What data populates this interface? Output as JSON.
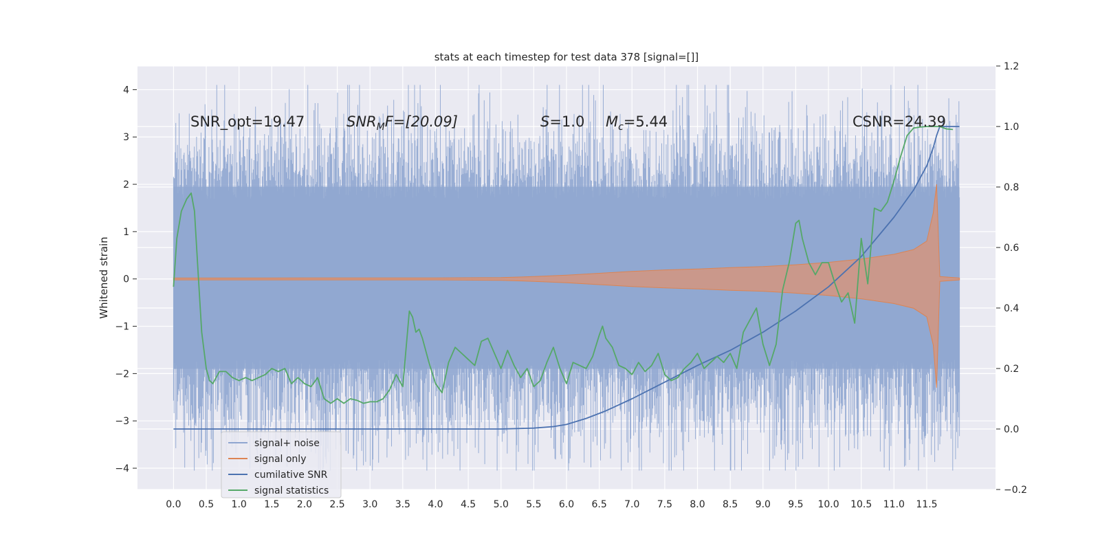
{
  "chart_data": {
    "type": "line",
    "title": "stats at each timestep for test data 378 [signal=[]]",
    "ylabel": "Whitened strain",
    "xlim": [
      -0.55,
      12.55
    ],
    "ylim": [
      -4.45,
      4.5
    ],
    "y2lim": [
      -0.2,
      1.2
    ],
    "x_ticks": [
      "0.0",
      "0.5",
      "1.0",
      "1.5",
      "2.0",
      "2.5",
      "3.0",
      "3.5",
      "4.0",
      "4.5",
      "5.0",
      "5.5",
      "6.0",
      "6.5",
      "7.0",
      "7.5",
      "8.0",
      "8.5",
      "9.0",
      "9.5",
      "10.0",
      "10.5",
      "11.0",
      "11.5"
    ],
    "y_ticks": [
      4,
      3,
      2,
      1,
      0,
      -1,
      -2,
      -3,
      -4
    ],
    "y2_ticks": [
      "1.2",
      "1.0",
      "0.8",
      "0.6",
      "0.4",
      "0.2",
      "0.0",
      "−0.2"
    ],
    "annotations": {
      "snr_opt": "SNR_opt=19.47",
      "snr_mf_main": "SNR",
      "snr_mf_sub": "M",
      "snr_mf_tail": "F=[20.09]",
      "s_var": "S",
      "s_tail": "=1.0",
      "mc_var": "M",
      "mc_sub": "c",
      "mc_tail": "=5.44",
      "csnr": "CSNR=24.39"
    },
    "legend": [
      {
        "label": "signal+ noise",
        "color": "#8fa6d0"
      },
      {
        "label": "signal only",
        "color": "#dd8452"
      },
      {
        "label": "cumilative SNR",
        "color": "#4c72b0"
      },
      {
        "label": "signal statistics",
        "color": "#55a868"
      }
    ],
    "legend_placement": "lower-left",
    "grid": true,
    "noise_envelope": {
      "x_start": 0.0,
      "x_end": 12.0,
      "dense_band": [
        -1.9,
        1.95
      ],
      "spike_max": 4.1,
      "spike_min": -4.05
    },
    "signal_only_envelope": {
      "x": [
        0.0,
        2.0,
        4.0,
        5.0,
        5.5,
        6.0,
        6.5,
        7.0,
        7.5,
        8.0,
        8.5,
        9.0,
        9.5,
        10.0,
        10.5,
        11.0,
        11.3,
        11.5,
        11.6,
        11.65,
        11.7,
        12.0
      ],
      "upper": [
        0.02,
        0.02,
        0.02,
        0.03,
        0.05,
        0.08,
        0.12,
        0.16,
        0.19,
        0.21,
        0.24,
        0.26,
        0.3,
        0.35,
        0.42,
        0.52,
        0.62,
        0.8,
        1.4,
        2.0,
        0.05,
        0.02
      ],
      "lower": [
        -0.02,
        -0.02,
        -0.02,
        -0.03,
        -0.05,
        -0.08,
        -0.12,
        -0.16,
        -0.19,
        -0.21,
        -0.24,
        -0.26,
        -0.3,
        -0.35,
        -0.42,
        -0.52,
        -0.62,
        -0.8,
        -1.4,
        -2.3,
        -0.05,
        -0.02
      ]
    },
    "series": [
      {
        "name": "cumilative SNR",
        "axis": "right",
        "x": [
          0.0,
          4.0,
          5.0,
          5.5,
          5.8,
          6.0,
          6.3,
          6.6,
          7.0,
          7.5,
          8.0,
          8.5,
          9.0,
          9.5,
          10.0,
          10.5,
          11.0,
          11.3,
          11.5,
          11.6,
          11.65,
          11.7,
          12.0
        ],
        "values": [
          0.0,
          0.0,
          0.0,
          0.003,
          0.008,
          0.015,
          0.035,
          0.06,
          0.1,
          0.155,
          0.21,
          0.26,
          0.32,
          0.39,
          0.47,
          0.57,
          0.7,
          0.79,
          0.87,
          0.93,
          0.97,
          1.0,
          1.0
        ]
      },
      {
        "name": "signal statistics",
        "axis": "right",
        "x": [
          0.0,
          0.05,
          0.12,
          0.2,
          0.27,
          0.32,
          0.38,
          0.43,
          0.5,
          0.55,
          0.6,
          0.65,
          0.7,
          0.8,
          0.9,
          1.0,
          1.1,
          1.2,
          1.3,
          1.4,
          1.5,
          1.6,
          1.7,
          1.8,
          1.9,
          2.0,
          2.1,
          2.2,
          2.3,
          2.4,
          2.5,
          2.6,
          2.7,
          2.8,
          2.9,
          3.0,
          3.1,
          3.2,
          3.3,
          3.4,
          3.5,
          3.6,
          3.65,
          3.7,
          3.75,
          3.8,
          3.9,
          4.0,
          4.1,
          4.2,
          4.3,
          4.4,
          4.5,
          4.6,
          4.7,
          4.8,
          4.9,
          5.0,
          5.1,
          5.2,
          5.3,
          5.4,
          5.5,
          5.6,
          5.7,
          5.8,
          5.9,
          6.0,
          6.1,
          6.2,
          6.3,
          6.4,
          6.5,
          6.55,
          6.6,
          6.7,
          6.8,
          6.9,
          7.0,
          7.1,
          7.2,
          7.3,
          7.4,
          7.5,
          7.6,
          7.7,
          7.8,
          7.9,
          8.0,
          8.1,
          8.2,
          8.3,
          8.4,
          8.5,
          8.6,
          8.7,
          8.8,
          8.9,
          9.0,
          9.1,
          9.2,
          9.3,
          9.4,
          9.5,
          9.55,
          9.6,
          9.7,
          9.8,
          9.9,
          10.0,
          10.1,
          10.2,
          10.3,
          10.4,
          10.5,
          10.6,
          10.7,
          10.8,
          10.9,
          11.0,
          11.1,
          11.2,
          11.3,
          11.4,
          11.5,
          11.6,
          11.7,
          11.8,
          11.9
        ],
        "values": [
          0.47,
          0.63,
          0.72,
          0.76,
          0.78,
          0.72,
          0.5,
          0.32,
          0.2,
          0.16,
          0.15,
          0.17,
          0.19,
          0.19,
          0.17,
          0.16,
          0.17,
          0.16,
          0.17,
          0.18,
          0.2,
          0.19,
          0.2,
          0.15,
          0.17,
          0.15,
          0.14,
          0.17,
          0.1,
          0.085,
          0.1,
          0.085,
          0.1,
          0.095,
          0.085,
          0.09,
          0.09,
          0.1,
          0.13,
          0.18,
          0.14,
          0.39,
          0.37,
          0.32,
          0.33,
          0.3,
          0.22,
          0.15,
          0.12,
          0.22,
          0.27,
          0.25,
          0.23,
          0.21,
          0.29,
          0.3,
          0.25,
          0.2,
          0.26,
          0.21,
          0.17,
          0.2,
          0.14,
          0.16,
          0.22,
          0.27,
          0.2,
          0.15,
          0.22,
          0.21,
          0.2,
          0.24,
          0.31,
          0.34,
          0.3,
          0.27,
          0.21,
          0.2,
          0.18,
          0.22,
          0.19,
          0.21,
          0.25,
          0.18,
          0.16,
          0.17,
          0.2,
          0.22,
          0.25,
          0.2,
          0.22,
          0.24,
          0.22,
          0.25,
          0.2,
          0.32,
          0.36,
          0.4,
          0.28,
          0.21,
          0.28,
          0.46,
          0.55,
          0.68,
          0.69,
          0.63,
          0.55,
          0.51,
          0.55,
          0.55,
          0.48,
          0.42,
          0.45,
          0.35,
          0.63,
          0.48,
          0.73,
          0.72,
          0.75,
          0.82,
          0.9,
          0.97,
          0.995,
          0.998,
          1.0,
          1.0,
          1.0,
          0.992,
          0.99
        ]
      }
    ]
  }
}
